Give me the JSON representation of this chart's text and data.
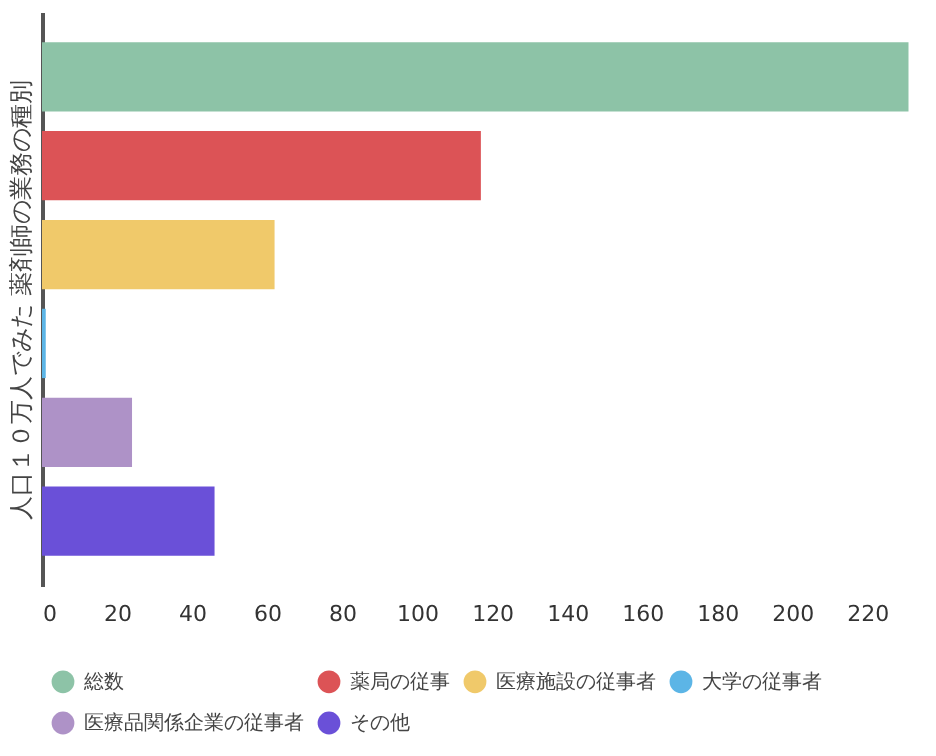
{
  "chart_data": {
    "type": "bar",
    "orientation": "horizontal",
    "ylabel": "人口１０万人でみた 薬剤師の業務の種別",
    "categories": [
      null
    ],
    "series": [
      {
        "name": "総数",
        "color": "#8dc3a7",
        "values": [
          231
        ]
      },
      {
        "name": "薬局の従事",
        "color": "#dc5356",
        "values": [
          117
        ]
      },
      {
        "name": "医療施設の従事者",
        "color": "#f0c96a",
        "values": [
          62
        ]
      },
      {
        "name": "大学の従事者",
        "color": "#5cb5e6",
        "values": [
          1
        ]
      },
      {
        "name": "医療品関係企業の従事者",
        "color": "#ae92c7",
        "values": [
          24
        ]
      },
      {
        "name": "その他",
        "color": "#6a50d8",
        "values": [
          46
        ]
      }
    ],
    "xlim": [
      0,
      233
    ],
    "xticks": [
      0,
      20,
      40,
      60,
      80,
      100,
      120,
      140,
      160,
      180,
      200,
      220
    ],
    "tick_labels": "x",
    "grid": false,
    "legend": "bottom"
  }
}
